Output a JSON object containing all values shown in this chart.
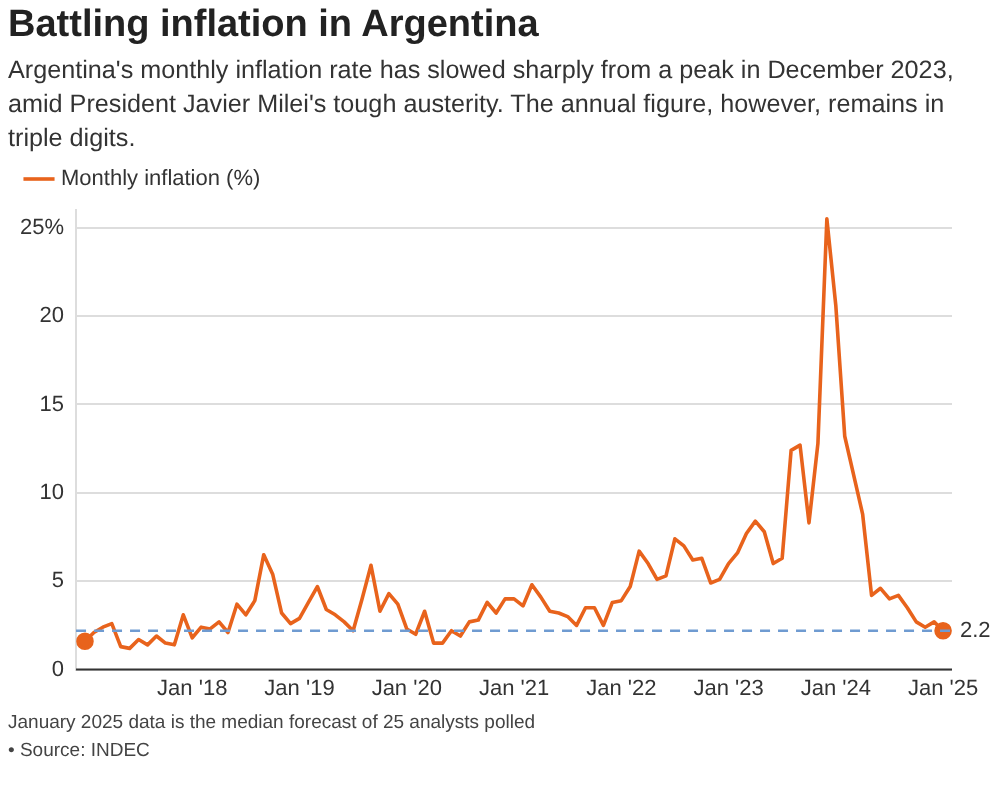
{
  "chart_data": {
    "type": "line",
    "title": "Battling inflation in Argentina",
    "subtitle": "Argentina's monthly inflation rate has slowed sharply from a peak in December 2023, amid President Javier Milei's tough austerity. The annual figure, however, remains in triple digits.",
    "x": [
      "2017-01",
      "2017-02",
      "2017-03",
      "2017-04",
      "2017-05",
      "2017-06",
      "2017-07",
      "2017-08",
      "2017-09",
      "2017-10",
      "2017-11",
      "2017-12",
      "2018-01",
      "2018-02",
      "2018-03",
      "2018-04",
      "2018-05",
      "2018-06",
      "2018-07",
      "2018-08",
      "2018-09",
      "2018-10",
      "2018-11",
      "2018-12",
      "2019-01",
      "2019-02",
      "2019-03",
      "2019-04",
      "2019-05",
      "2019-06",
      "2019-07",
      "2019-08",
      "2019-09",
      "2019-10",
      "2019-11",
      "2019-12",
      "2020-01",
      "2020-02",
      "2020-03",
      "2020-04",
      "2020-05",
      "2020-06",
      "2020-07",
      "2020-08",
      "2020-09",
      "2020-10",
      "2020-11",
      "2020-12",
      "2021-01",
      "2021-02",
      "2021-03",
      "2021-04",
      "2021-05",
      "2021-06",
      "2021-07",
      "2021-08",
      "2021-09",
      "2021-10",
      "2021-11",
      "2021-12",
      "2022-01",
      "2022-02",
      "2022-03",
      "2022-04",
      "2022-05",
      "2022-06",
      "2022-07",
      "2022-08",
      "2022-09",
      "2022-10",
      "2022-11",
      "2022-12",
      "2023-01",
      "2023-02",
      "2023-03",
      "2023-04",
      "2023-05",
      "2023-06",
      "2023-07",
      "2023-08",
      "2023-09",
      "2023-10",
      "2023-11",
      "2023-12",
      "2024-01",
      "2024-02",
      "2024-03",
      "2024-04",
      "2024-05",
      "2024-06",
      "2024-07",
      "2024-08",
      "2024-09",
      "2024-10",
      "2024-11",
      "2024-12",
      "2025-01"
    ],
    "series": [
      {
        "name": "Monthly inflation (%)",
        "color": "#e8631c",
        "values": [
          1.6,
          2.1,
          2.4,
          2.6,
          1.3,
          1.2,
          1.7,
          1.4,
          1.9,
          1.5,
          1.4,
          3.1,
          1.8,
          2.4,
          2.3,
          2.7,
          2.1,
          3.7,
          3.1,
          3.9,
          6.5,
          5.4,
          3.2,
          2.6,
          2.9,
          3.8,
          4.7,
          3.4,
          3.1,
          2.7,
          2.2,
          4.0,
          5.9,
          3.3,
          4.3,
          3.7,
          2.3,
          2.0,
          3.3,
          1.5,
          1.5,
          2.2,
          1.9,
          2.7,
          2.8,
          3.8,
          3.2,
          4.0,
          4.0,
          3.6,
          4.8,
          4.1,
          3.3,
          3.2,
          3.0,
          2.5,
          3.5,
          3.5,
          2.5,
          3.8,
          3.9,
          4.7,
          6.7,
          6.0,
          5.1,
          5.3,
          7.4,
          7.0,
          6.2,
          6.3,
          4.9,
          5.1,
          6.0,
          6.6,
          7.7,
          8.4,
          7.8,
          6.0,
          6.3,
          12.4,
          12.7,
          8.3,
          12.8,
          25.5,
          20.6,
          13.2,
          11.0,
          8.8,
          4.2,
          4.6,
          4.0,
          4.2,
          3.5,
          2.7,
          2.4,
          2.7,
          2.2
        ]
      }
    ],
    "xlim": [
      "2016-12",
      "2025-02"
    ],
    "xticks": [
      {
        "value": "2018-01",
        "label": "Jan '18"
      },
      {
        "value": "2019-01",
        "label": "Jan '19"
      },
      {
        "value": "2020-01",
        "label": "Jan '20"
      },
      {
        "value": "2021-01",
        "label": "Jan '21"
      },
      {
        "value": "2022-01",
        "label": "Jan '22"
      },
      {
        "value": "2023-01",
        "label": "Jan '23"
      },
      {
        "value": "2024-01",
        "label": "Jan '24"
      },
      {
        "value": "2025-01",
        "label": "Jan '25"
      }
    ],
    "ylim": [
      0,
      26
    ],
    "yticks": [
      0,
      5,
      10,
      15,
      20,
      {
        "value": 25,
        "label": "25%"
      }
    ],
    "ref_lines": [
      {
        "axis": "y",
        "value": 2.2,
        "label": "2.2",
        "color": "#6f9bd1",
        "line_style": "dashed"
      }
    ],
    "grid": "y",
    "legend": "top left",
    "marker": "none",
    "line_style": "solid",
    "annotations": [
      "January 2025 data is the median forecast of 25 analysts polled",
      "• Source: INDEC"
    ]
  }
}
